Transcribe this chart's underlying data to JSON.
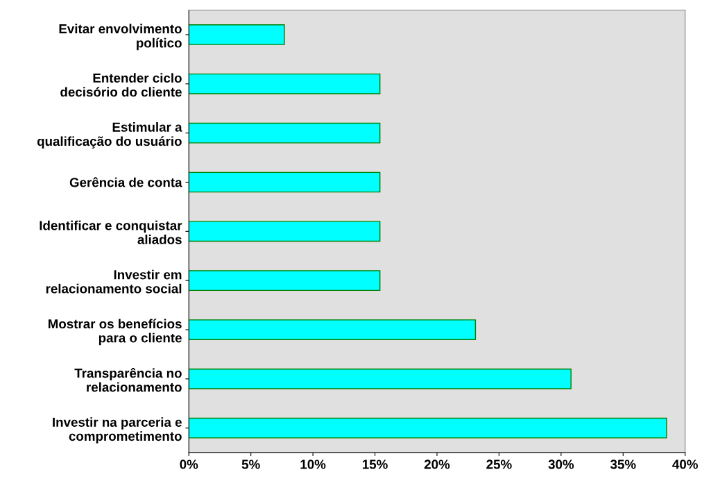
{
  "chart_data": {
    "type": "bar",
    "orientation": "horizontal",
    "categories": [
      "Evitar envolvimento\npolítico",
      "Entender ciclo\ndecisório do cliente",
      "Estimular a\nqualificação do usuário",
      "Gerência de conta",
      "Identificar e conquistar\naliados",
      "Investir em\nrelacionamento social",
      "Mostrar os benefícios\npara o cliente",
      "Transparência no\nrelacionamento",
      "Investir na parceria e\ncomprometimento"
    ],
    "values": [
      7.7,
      15.4,
      15.4,
      15.4,
      15.4,
      15.4,
      23.1,
      30.8,
      38.5
    ],
    "color": "#00ffff",
    "xlim": [
      0,
      40
    ],
    "xticks": [
      {
        "value": 0,
        "label": "0%"
      },
      {
        "value": 5,
        "label": "5%"
      },
      {
        "value": 10,
        "label": "10%"
      },
      {
        "value": 15,
        "label": "15%"
      },
      {
        "value": 20,
        "label": "20%"
      },
      {
        "value": 25,
        "label": "25%"
      },
      {
        "value": 30,
        "label": "30%"
      },
      {
        "value": 35,
        "label": "35%"
      },
      {
        "value": 40,
        "label": "40%"
      }
    ],
    "grid": false,
    "legend": false
  }
}
